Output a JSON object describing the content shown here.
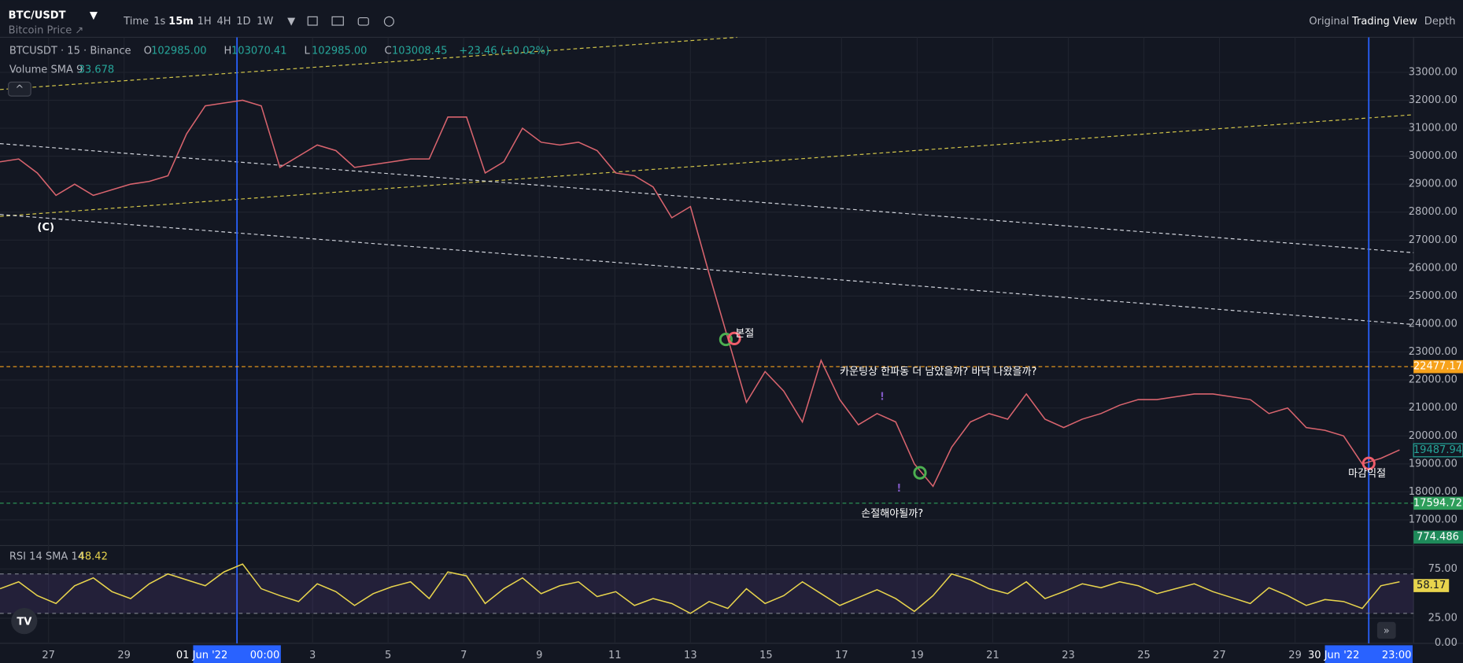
{
  "header": {
    "symbol": "BTC/USDT",
    "subtitle": "Bitcoin Price ↗",
    "intervals": [
      "Time",
      "1s",
      "15m",
      "1H",
      "4H",
      "1D",
      "1W"
    ],
    "views": [
      "Original",
      "Trading View",
      "Depth"
    ]
  },
  "legend": {
    "instrument": "BTCUSDT · 15 · Binance",
    "ohlc": [
      {
        "label": "O",
        "value": "102985.00"
      },
      {
        "label": "H",
        "value": "103070.41"
      },
      {
        "label": "L",
        "value": "102985.00"
      },
      {
        "label": "C",
        "value": "103008.45"
      }
    ],
    "change": "+23.46 (+0.02%)",
    "volume_label": "Volume SMA 9",
    "volume_value": "33.678",
    "volume_last": "774.486",
    "rsi_label": "RSI 14 SMA 14",
    "rsi_value": "48.42"
  },
  "annotations": {
    "wave": "(C)",
    "breakeven": "본절",
    "question": "카운팅상  한파동 더 남았을까? 바닥 나왔을까?",
    "stoploss": "손절해야될까?",
    "takeprofit": "마감익절"
  },
  "time_labels": [
    "27",
    "29",
    "3",
    "5",
    "7",
    "9",
    "11",
    "13",
    "15",
    "17",
    "19",
    "21",
    "23",
    "25",
    "27",
    "29"
  ],
  "time_highlights": [
    {
      "date": "01 Jun '22",
      "time": "00:00"
    },
    {
      "date": "30 Jun '22",
      "time": "23:00"
    }
  ],
  "chart_data": [
    {
      "type": "line",
      "color": "#d9646e",
      "ylim": [
        16150,
        34250
      ],
      "values": [
        29800,
        29900,
        29400,
        28600,
        29000,
        28600,
        28800,
        29000,
        29100,
        29300,
        30800,
        31800,
        31900,
        32000,
        31800,
        29600,
        30000,
        30400,
        30200,
        29600,
        29700,
        29800,
        29900,
        29900,
        31400,
        31400,
        29400,
        29800,
        31000,
        30500,
        30400,
        30500,
        30200,
        29400,
        29300,
        28900,
        27800,
        28200,
        25800,
        23500,
        21200,
        22300,
        21600,
        20500,
        22700,
        21300,
        20400,
        20800,
        20500,
        19000,
        18200,
        19600,
        20500,
        20800,
        20600,
        21500,
        20600,
        20300,
        20600,
        20800,
        21100,
        21300,
        21300,
        21400,
        21500,
        21500,
        21400,
        21300,
        20800,
        21000,
        20300,
        20200,
        20000,
        19000,
        19200,
        19500
      ],
      "yticks": [
        {
          "value": 33000,
          "label": "33000.00"
        },
        {
          "value": 32000,
          "label": "32000.00"
        },
        {
          "value": 31000,
          "label": "31000.00"
        },
        {
          "value": 30000,
          "label": "30000.00"
        },
        {
          "value": 29000,
          "label": "29000.00"
        },
        {
          "value": 28000,
          "label": "28000.00"
        },
        {
          "value": 27000,
          "label": "27000.00"
        },
        {
          "value": 26000,
          "label": "26000.00"
        },
        {
          "value": 25000,
          "label": "25000.00"
        },
        {
          "value": 24000,
          "label": "24000.00"
        },
        {
          "value": 23000,
          "label": "23000.00"
        },
        {
          "value": 22000,
          "label": "22000.00"
        },
        {
          "value": 21000,
          "label": "21000.00"
        },
        {
          "value": 20000,
          "label": "20000.00"
        },
        {
          "value": 19000,
          "label": "19000.00"
        },
        {
          "value": 18000,
          "label": "18000.00"
        },
        {
          "value": 17000,
          "label": "17000.00"
        }
      ],
      "levels": [
        {
          "value": 22477.17,
          "label": "22477.17",
          "color": "#f7a21b"
        },
        {
          "value": 17594.72,
          "label": "17594.72",
          "color": "#2e9e5b"
        }
      ],
      "last": {
        "value": 19487.94,
        "label": "19487.94"
      }
    },
    {
      "type": "line",
      "color": "#e8d44d",
      "ylim": [
        0,
        96
      ],
      "values": [
        55,
        62,
        48,
        40,
        58,
        66,
        52,
        45,
        60,
        70,
        64,
        58,
        72,
        80,
        55,
        48,
        42,
        60,
        52,
        38,
        50,
        57,
        62,
        45,
        72,
        68,
        40,
        55,
        66,
        50,
        58,
        62,
        47,
        52,
        38,
        45,
        40,
        30,
        42,
        35,
        55,
        40,
        48,
        62,
        50,
        38,
        46,
        54,
        45,
        32,
        48,
        70,
        64,
        55,
        50,
        62,
        45,
        52,
        60,
        56,
        62,
        58,
        50,
        55,
        60,
        52,
        46,
        40,
        56,
        48,
        38,
        44,
        42,
        35,
        58,
        62
      ],
      "yticks": [
        {
          "value": 75,
          "label": "75.00"
        },
        {
          "value": 25,
          "label": "25.00"
        },
        {
          "value": 0,
          "label": "0.00"
        }
      ],
      "band": [
        30,
        70
      ],
      "last": 58.17
    }
  ]
}
